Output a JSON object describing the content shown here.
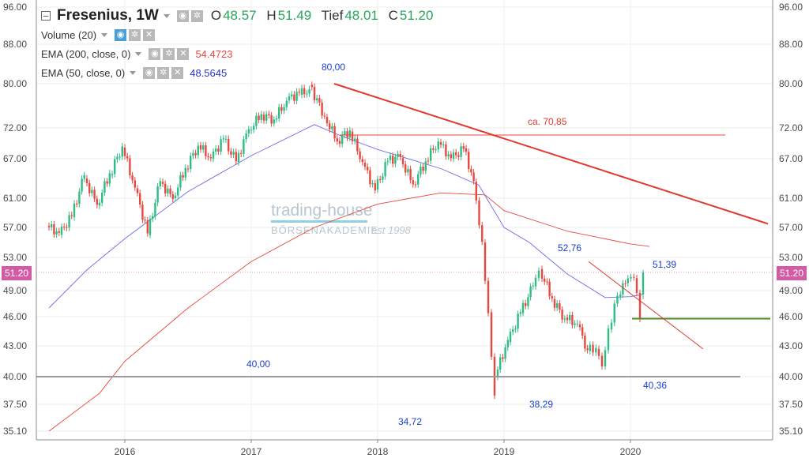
{
  "legend": {
    "symbol": "Fresenius, 1W",
    "ohlc": [
      {
        "k": "O",
        "v": "48.57"
      },
      {
        "k": "H",
        "v": "51.49"
      },
      {
        "k": "Tief",
        "v": "48.01"
      },
      {
        "k": "C",
        "v": "51.20"
      }
    ],
    "indicators": [
      {
        "name": "Volume (20)",
        "value": ""
      },
      {
        "name": "EMA (200, close, 0)",
        "value": "54.4723"
      },
      {
        "name": "EMA (50, close, 0)",
        "value": "48.5645"
      }
    ]
  },
  "watermark": {
    "line1": "trading-house",
    "line2": "BÖRSENAKADEMIE",
    "line3": "est 1998"
  },
  "last_price": "51.20",
  "colors": {
    "up": "#2ebd85",
    "down": "#e8483e",
    "ema200": "#e8483e",
    "ema50": "#6c6cf0",
    "trend": "#e03a2e",
    "support": "#4c8a2a",
    "level40": "#999999",
    "last": "#d55aa6"
  },
  "chart_data": {
    "type": "candlestick",
    "y_ticks": [
      "96.00",
      "88.00",
      "80.00",
      "72.00",
      "67.00",
      "61.00",
      "57.00",
      "53.00",
      "49.00",
      "46.00",
      "43.00",
      "40.00",
      "37.50",
      "35.10"
    ],
    "y_scale": "log",
    "x_ticks": [
      "2016",
      "2017",
      "2018",
      "2019",
      "2020"
    ],
    "annotations": [
      "80,00",
      "ca. 70,85",
      "52,76",
      "51,39",
      "40,00",
      "38,29",
      "40,36",
      "34,72"
    ],
    "levels": {
      "support_40": 40.0,
      "resistance_70_85": 70.85,
      "support_46": 45.8
    },
    "trendline_main": [
      [
        "2017-06",
        80.0
      ],
      [
        "2020-06",
        57.5
      ]
    ],
    "trendline_minor": [
      [
        "2019-04",
        52.5
      ],
      [
        "2020-01",
        42.7
      ]
    ],
    "ema200": [
      [
        2015.4,
        35.1
      ],
      [
        2015.8,
        38.5
      ],
      [
        2016.0,
        41.5
      ],
      [
        2016.5,
        47.0
      ],
      [
        2017.0,
        52.5
      ],
      [
        2017.5,
        57.0
      ],
      [
        2018.0,
        60.2
      ],
      [
        2018.5,
        61.8
      ],
      [
        2018.85,
        61.5
      ],
      [
        2019.0,
        59.3
      ],
      [
        2019.5,
        56.5
      ],
      [
        2020.0,
        54.8
      ],
      [
        2020.15,
        54.47
      ]
    ],
    "ema50": [
      [
        2015.4,
        47.0
      ],
      [
        2015.7,
        51.5
      ],
      [
        2016.0,
        55.5
      ],
      [
        2016.5,
        62.0
      ],
      [
        2017.0,
        67.5
      ],
      [
        2017.5,
        72.6
      ],
      [
        2017.7,
        70.8
      ],
      [
        2018.0,
        68.5
      ],
      [
        2018.5,
        65.5
      ],
      [
        2018.8,
        63.0
      ],
      [
        2019.0,
        57.0
      ],
      [
        2019.2,
        55.0
      ],
      [
        2019.5,
        51.0
      ],
      [
        2019.8,
        48.2
      ],
      [
        2020.0,
        48.3
      ],
      [
        2020.1,
        48.56
      ]
    ],
    "candles": [
      [
        2015.4,
        57.2,
        56.3
      ],
      [
        2015.5,
        56.0,
        58.6
      ],
      [
        2015.6,
        58.4,
        64.5
      ],
      [
        2015.7,
        64.0,
        60.1
      ],
      [
        2015.8,
        60.0,
        64.8
      ],
      [
        2015.9,
        64.5,
        69.0
      ],
      [
        2016.0,
        68.8,
        62.6
      ],
      [
        2016.1,
        62.5,
        56.2
      ],
      [
        2016.2,
        56.0,
        63.6
      ],
      [
        2016.3,
        63.5,
        60.9
      ],
      [
        2016.4,
        61.0,
        65.6
      ],
      [
        2016.5,
        65.5,
        69.1
      ],
      [
        2016.6,
        69.2,
        67.1
      ],
      [
        2016.7,
        67.0,
        70.3
      ],
      [
        2016.8,
        70.1,
        66.6
      ],
      [
        2016.9,
        66.5,
        71.8
      ],
      [
        2017.0,
        71.6,
        74.5
      ],
      [
        2017.1,
        74.4,
        73.5
      ],
      [
        2017.2,
        73.5,
        76.9
      ],
      [
        2017.3,
        77.0,
        78.4
      ],
      [
        2017.4,
        78.0,
        79.0
      ],
      [
        2017.48,
        79.8,
        74.2
      ],
      [
        2017.6,
        74.0,
        69.8
      ],
      [
        2017.7,
        69.9,
        71.6
      ],
      [
        2017.8,
        71.4,
        66.5
      ],
      [
        2017.9,
        66.4,
        62.2
      ],
      [
        2018.0,
        62.3,
        66.6
      ],
      [
        2018.1,
        66.8,
        67.3
      ],
      [
        2018.2,
        67.1,
        63.1
      ],
      [
        2018.3,
        63.1,
        66.6
      ],
      [
        2018.4,
        66.7,
        69.8
      ],
      [
        2018.5,
        69.7,
        67.1
      ],
      [
        2018.6,
        67.0,
        68.6
      ],
      [
        2018.7,
        68.7,
        63.6
      ],
      [
        2018.78,
        63.5,
        55.1
      ],
      [
        2018.85,
        55.0,
        46.4
      ],
      [
        2018.9,
        46.5,
        38.29
      ],
      [
        2018.95,
        40.0,
        43.6
      ],
      [
        2019.05,
        43.4,
        46.5
      ],
      [
        2019.15,
        46.4,
        49.6
      ],
      [
        2019.25,
        49.5,
        51.4
      ],
      [
        2019.3,
        51.6,
        48.1
      ],
      [
        2019.4,
        48.0,
        45.8
      ],
      [
        2019.5,
        45.9,
        45.3
      ],
      [
        2019.6,
        45.2,
        42.6
      ],
      [
        2019.68,
        42.5,
        42.8
      ],
      [
        2019.75,
        42.7,
        41.0
      ],
      [
        2019.8,
        41.0,
        44.8
      ],
      [
        2019.85,
        44.7,
        48.4
      ],
      [
        2019.92,
        48.3,
        49.8
      ],
      [
        2019.98,
        49.9,
        50.6
      ],
      [
        2020.05,
        50.5,
        45.8
      ],
      [
        2020.1,
        48.57,
        51.2
      ]
    ]
  }
}
